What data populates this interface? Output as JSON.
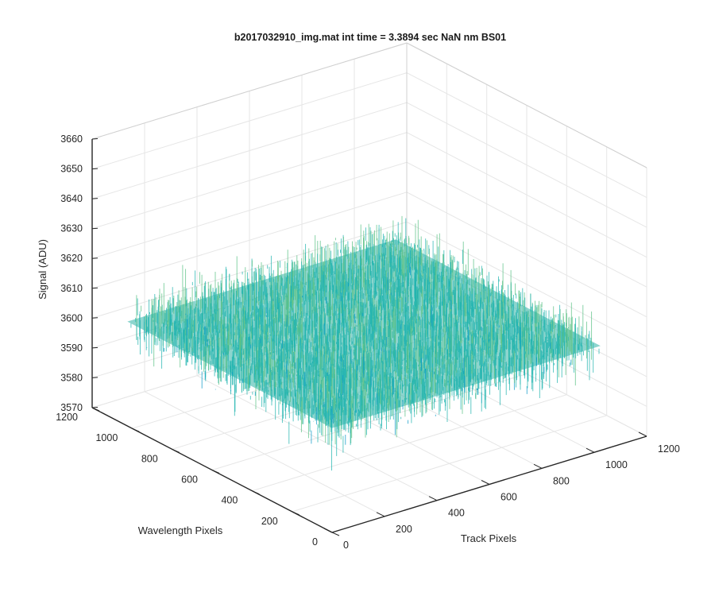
{
  "chart_data": {
    "type": "surface",
    "title": "b2017032910_img.mat int time = 3.3894 sec  NaN nm BS01",
    "xlabel": "Track Pixels",
    "ylabel": "Wavelength Pixels",
    "zlabel": "Signal (ADU)",
    "xlim": [
      0,
      1200
    ],
    "ylim": [
      0,
      1200
    ],
    "zlim": [
      3570,
      3660
    ],
    "x_ticks": [
      "0",
      "200",
      "400",
      "600",
      "800",
      "1000",
      "1200"
    ],
    "y_ticks": [
      "0",
      "200",
      "400",
      "600",
      "800",
      "1000",
      "1200"
    ],
    "z_ticks": [
      "3570",
      "3580",
      "3590",
      "3600",
      "3610",
      "3620",
      "3630",
      "3640",
      "3650",
      "3660"
    ],
    "grid": true,
    "colormap": "parula",
    "colors": [
      "#0072bd",
      "#0d9bc9",
      "#22b5b0",
      "#5cc286",
      "#c8c23a"
    ],
    "data_extent": {
      "track_pixels": [
        0,
        1024
      ],
      "wavelength_pixels": [
        0,
        1024
      ]
    },
    "signal_mean": 3605,
    "signal_range": [
      3575,
      3645
    ]
  }
}
